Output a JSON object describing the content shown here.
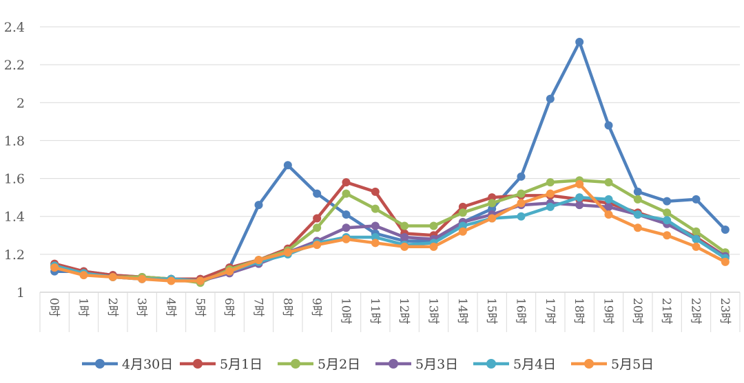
{
  "chart_data": {
    "type": "line",
    "title": "",
    "xlabel": "",
    "ylabel": "",
    "ylim": [
      1,
      2.4
    ],
    "yticks": [
      "1",
      "1.2",
      "1.4",
      "1.6",
      "1.8",
      "2",
      "2.2",
      "2.4"
    ],
    "ytick_values": [
      1,
      1.2,
      1.4,
      1.6,
      1.8,
      2,
      2.2,
      2.4
    ],
    "categories": [
      "0时",
      "1时",
      "2时",
      "3时",
      "4时",
      "5时",
      "6时",
      "7时",
      "8时",
      "9时",
      "10时",
      "11时",
      "12时",
      "13时",
      "14时",
      "15时",
      "16时",
      "17时",
      "18时",
      "19时",
      "20时",
      "21时",
      "22时",
      "23时"
    ],
    "grid": true,
    "legend_position": "bottom",
    "series": [
      {
        "name": "4月30日",
        "color": "#4f81bd",
        "values": [
          1.11,
          1.11,
          1.09,
          1.08,
          1.07,
          1.07,
          1.13,
          1.46,
          1.67,
          1.52,
          1.41,
          1.31,
          1.27,
          1.27,
          1.37,
          1.44,
          1.61,
          2.02,
          2.32,
          1.88,
          1.53,
          1.48,
          1.49,
          1.33
        ]
      },
      {
        "name": "5月1日",
        "color": "#c0504d",
        "values": [
          1.15,
          1.11,
          1.09,
          1.08,
          1.07,
          1.07,
          1.13,
          1.17,
          1.23,
          1.39,
          1.58,
          1.53,
          1.31,
          1.3,
          1.45,
          1.5,
          1.51,
          1.51,
          1.49,
          1.47,
          1.42,
          1.37,
          1.29,
          1.19
        ]
      },
      {
        "name": "5月2日",
        "color": "#9bbb59",
        "values": [
          1.14,
          1.1,
          1.08,
          1.08,
          1.07,
          1.05,
          1.12,
          1.17,
          1.22,
          1.34,
          1.52,
          1.44,
          1.35,
          1.35,
          1.42,
          1.47,
          1.52,
          1.58,
          1.59,
          1.58,
          1.49,
          1.42,
          1.32,
          1.21
        ]
      },
      {
        "name": "5月3日",
        "color": "#8064a2",
        "values": [
          1.13,
          1.1,
          1.08,
          1.07,
          1.07,
          1.06,
          1.1,
          1.15,
          1.21,
          1.27,
          1.34,
          1.35,
          1.29,
          1.28,
          1.37,
          1.41,
          1.46,
          1.47,
          1.46,
          1.45,
          1.41,
          1.36,
          1.28,
          1.19
        ]
      },
      {
        "name": "5月4日",
        "color": "#4bacc6",
        "values": [
          1.14,
          1.1,
          1.08,
          1.07,
          1.07,
          1.06,
          1.11,
          1.16,
          1.2,
          1.26,
          1.29,
          1.29,
          1.25,
          1.26,
          1.35,
          1.39,
          1.4,
          1.45,
          1.5,
          1.49,
          1.41,
          1.38,
          1.28,
          1.18
        ]
      },
      {
        "name": "5月5日",
        "color": "#f79646",
        "values": [
          1.13,
          1.09,
          1.08,
          1.07,
          1.06,
          1.06,
          1.11,
          1.17,
          1.21,
          1.25,
          1.28,
          1.26,
          1.24,
          1.24,
          1.32,
          1.39,
          1.47,
          1.52,
          1.57,
          1.41,
          1.34,
          1.3,
          1.24,
          1.16
        ]
      }
    ]
  }
}
